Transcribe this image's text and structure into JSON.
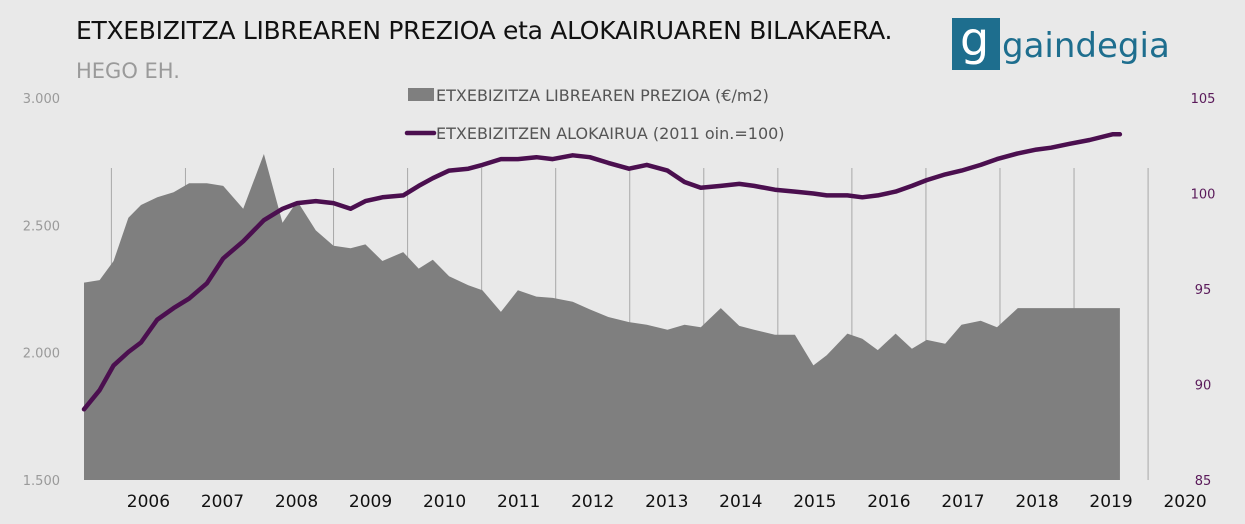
{
  "header": {
    "title": "ETXEBIZITZA LIBREAREN PREZIOA eta ALOKAIRUAREN BILAKAERA.",
    "subtitle": "HEGO EH.",
    "logo_text": "gaindegia"
  },
  "colors": {
    "area": "#7f7f7f",
    "line": "#4b0f4f",
    "background": "#e9e9e9",
    "grid": "#a8a8a8",
    "logo": "#1e6e8e"
  },
  "chart_data": {
    "type": "area",
    "legend_placement": "top-center",
    "x_range": [
      2005.63,
      2020.35
    ],
    "x_ticks": [
      "2006",
      "2007",
      "2008",
      "2009",
      "2010",
      "2011",
      "2012",
      "2013",
      "2014",
      "2015",
      "2016",
      "2017",
      "2018",
      "2019",
      "2020"
    ],
    "y_left": {
      "min": 1500,
      "max": 3000,
      "ticks": [
        "1.500",
        "2.000",
        "2.500",
        "3.000"
      ]
    },
    "y_right": {
      "min": 85,
      "max": 105,
      "ticks": [
        "85",
        "90",
        "95",
        "100",
        "105"
      ]
    },
    "grid": "vertical",
    "series": [
      {
        "name": "ETXEBIZITZA LIBREAREN PREZIOA (€/m2)",
        "axis": "left",
        "kind": "area",
        "x": [
          2005.63,
          2005.84,
          2006.03,
          2006.23,
          2006.4,
          2006.62,
          2006.84,
          2007.05,
          2007.29,
          2007.51,
          2007.78,
          2008.06,
          2008.31,
          2008.51,
          2008.76,
          2009.0,
          2009.23,
          2009.43,
          2009.66,
          2009.94,
          2010.15,
          2010.34,
          2010.56,
          2010.82,
          2011.01,
          2011.26,
          2011.49,
          2011.74,
          2011.96,
          2012.23,
          2012.46,
          2012.71,
          2012.99,
          2013.23,
          2013.51,
          2013.74,
          2013.96,
          2014.23,
          2014.48,
          2014.68,
          2014.96,
          2015.23,
          2015.48,
          2015.66,
          2015.94,
          2016.14,
          2016.35,
          2016.59,
          2016.81,
          2017.01,
          2017.26,
          2017.48,
          2017.74,
          2017.96,
          2018.24,
          2018.49,
          2018.69,
          2018.94,
          2019.21,
          2019.52,
          2019.62
        ],
        "y": [
          2275,
          2285,
          2360,
          2530,
          2580,
          2610,
          2630,
          2665,
          2665,
          2655,
          2565,
          2780,
          2510,
          2595,
          2480,
          2420,
          2410,
          2425,
          2360,
          2395,
          2330,
          2365,
          2300,
          2265,
          2245,
          2160,
          2245,
          2220,
          2215,
          2200,
          2170,
          2140,
          2120,
          2110,
          2090,
          2110,
          2100,
          2175,
          2105,
          2090,
          2070,
          2070,
          1950,
          1990,
          2075,
          2055,
          2010,
          2075,
          2015,
          2050,
          2035,
          2110,
          2125,
          2100,
          2175,
          2175,
          2175,
          2175,
          2175,
          2175,
          2175
        ]
      },
      {
        "name": "ETXEBIZITZEN ALOKAIRUA (2011 oin.=100)",
        "axis": "right",
        "kind": "line",
        "x": [
          2005.63,
          2005.84,
          2006.03,
          2006.23,
          2006.4,
          2006.62,
          2006.84,
          2007.05,
          2007.29,
          2007.51,
          2007.78,
          2008.06,
          2008.31,
          2008.51,
          2008.76,
          2009.0,
          2009.23,
          2009.43,
          2009.66,
          2009.94,
          2010.15,
          2010.34,
          2010.56,
          2010.82,
          2011.01,
          2011.26,
          2011.49,
          2011.74,
          2011.96,
          2012.23,
          2012.46,
          2012.71,
          2012.99,
          2013.23,
          2013.51,
          2013.74,
          2013.96,
          2014.23,
          2014.48,
          2014.68,
          2014.96,
          2015.23,
          2015.48,
          2015.66,
          2015.94,
          2016.14,
          2016.35,
          2016.59,
          2016.81,
          2017.01,
          2017.26,
          2017.48,
          2017.74,
          2017.96,
          2018.24,
          2018.49,
          2018.69,
          2018.94,
          2019.21,
          2019.52,
          2019.62
        ],
        "y": [
          88.7,
          89.7,
          91.0,
          91.7,
          92.2,
          93.4,
          94.0,
          94.5,
          95.3,
          96.6,
          97.5,
          98.6,
          99.2,
          99.5,
          99.6,
          99.5,
          99.2,
          99.6,
          99.8,
          99.9,
          100.4,
          100.8,
          101.2,
          101.3,
          101.5,
          101.8,
          101.8,
          101.9,
          101.8,
          102.0,
          101.9,
          101.6,
          101.3,
          101.5,
          101.2,
          100.6,
          100.3,
          100.4,
          100.5,
          100.4,
          100.2,
          100.1,
          100.0,
          99.9,
          99.9,
          99.8,
          99.9,
          100.1,
          100.4,
          100.7,
          101.0,
          101.2,
          101.5,
          101.8,
          102.1,
          102.3,
          102.4,
          102.6,
          102.8,
          103.1,
          103.1
        ]
      }
    ]
  }
}
